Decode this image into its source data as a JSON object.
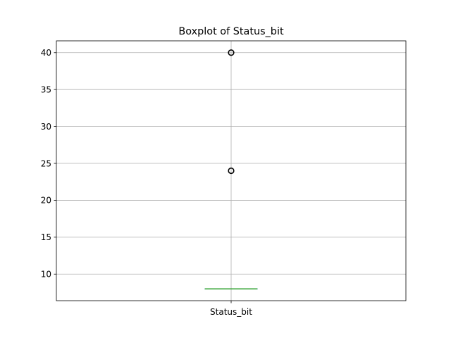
{
  "chart_data": {
    "type": "boxplot",
    "title": "Boxplot of Status_bit",
    "xlabel": "",
    "ylabel": "",
    "categories": [
      "Status_bit"
    ],
    "ylim": [
      6.4,
      41.6
    ],
    "yticks": [
      10,
      15,
      20,
      25,
      30,
      35,
      40
    ],
    "grid": true,
    "boxes": [
      {
        "category": "Status_bit",
        "whisker_low": 8,
        "q1": 8,
        "median": 8,
        "q3": 8,
        "whisker_high": 8,
        "outliers": [
          24,
          40
        ]
      }
    ],
    "colors": {
      "box": "#1f77b4",
      "median": "#2ca02c",
      "grid": "#b0b0b0",
      "outlier_edge": "#000000"
    }
  }
}
